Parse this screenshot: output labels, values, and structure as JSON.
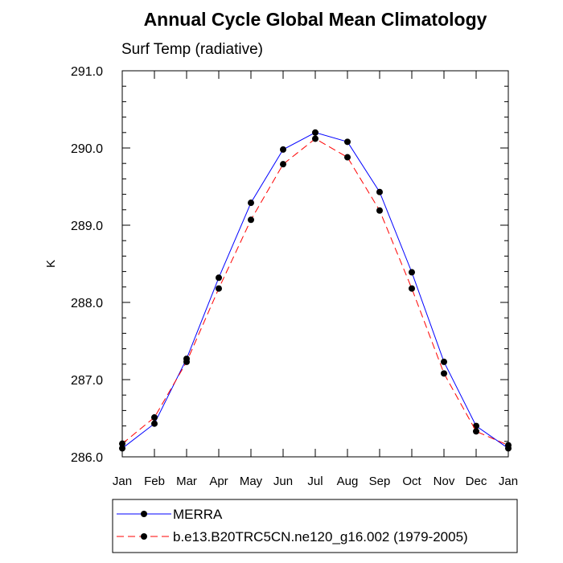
{
  "chart_data": {
    "type": "line",
    "title": "Annual Cycle Global Mean Climatology",
    "subtitle": "Surf Temp (radiative)",
    "ylabel": "K",
    "xlabel": "",
    "categories": [
      "Jan",
      "Feb",
      "Mar",
      "Apr",
      "May",
      "Jun",
      "Jul",
      "Aug",
      "Sep",
      "Oct",
      "Nov",
      "Dec",
      "Jan"
    ],
    "ylim": [
      286.0,
      291.0
    ],
    "yticks": [
      286.0,
      287.0,
      288.0,
      289.0,
      290.0,
      291.0
    ],
    "ytick_labels": [
      "286.0",
      "287.0",
      "288.0",
      "289.0",
      "290.0",
      "291.0"
    ],
    "series": [
      {
        "name": "MERRA",
        "color": "#0000ff",
        "dash": "solid",
        "values": [
          286.11,
          286.43,
          287.27,
          288.32,
          289.29,
          289.98,
          290.2,
          290.08,
          289.43,
          288.39,
          287.23,
          286.4,
          286.11
        ]
      },
      {
        "name": "b.e13.B20TRC5CN.ne120_g16.002 (1979-2005)",
        "color": "#ff0000",
        "dash": "dashed",
        "values": [
          286.17,
          286.51,
          287.23,
          288.18,
          289.07,
          289.79,
          290.12,
          289.88,
          289.19,
          288.18,
          287.08,
          286.33,
          286.15
        ]
      }
    ],
    "grid": false,
    "legend_position": "bottom"
  }
}
